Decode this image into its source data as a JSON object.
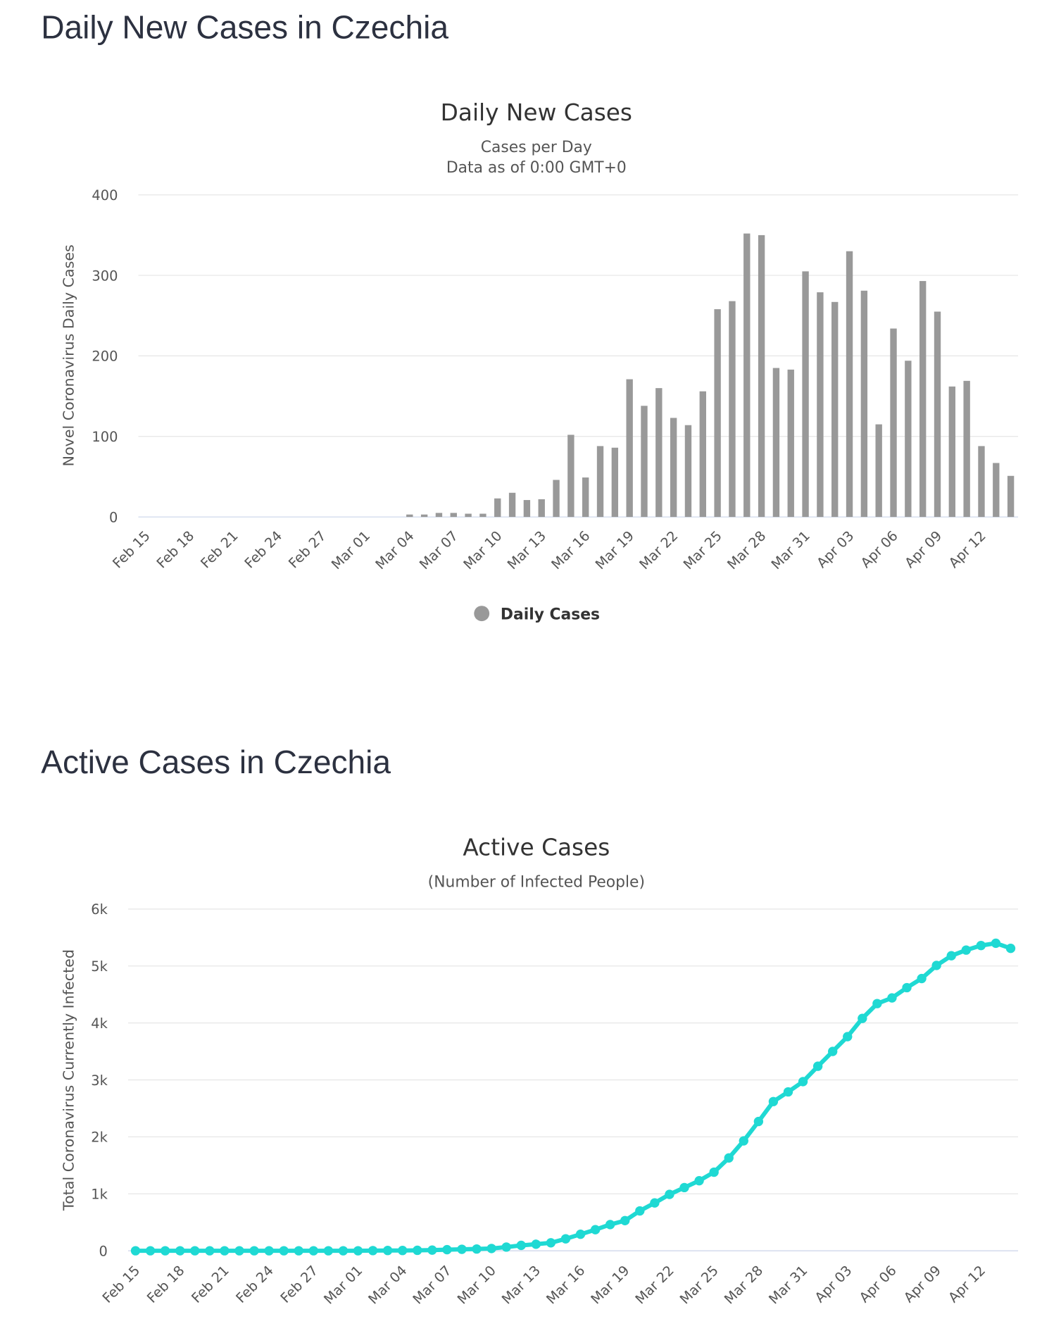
{
  "chart_data": [
    {
      "type": "bar",
      "heading": "Daily New Cases in Czechia",
      "title": "Daily New Cases",
      "subtitle": [
        "Cases per Day",
        "Data as of 0:00 GMT+0"
      ],
      "ylabel": "Novel Coronavirus Daily Cases",
      "xlabel": "",
      "ylim": [
        0,
        400
      ],
      "yticks": [
        "0",
        "100",
        "200",
        "300",
        "400"
      ],
      "ytick_values": [
        0,
        100,
        200,
        300,
        400
      ],
      "xtick_labels": [
        "Feb 15",
        "Feb 18",
        "Feb 21",
        "Feb 24",
        "Feb 27",
        "Mar 01",
        "Mar 04",
        "Mar 07",
        "Mar 10",
        "Mar 13",
        "Mar 16",
        "Mar 19",
        "Mar 22",
        "Mar 25",
        "Mar 28",
        "Mar 31",
        "Apr 03",
        "Apr 06",
        "Apr 09",
        "Apr 12"
      ],
      "grid": true,
      "legend": {
        "position": "bottom-center",
        "label": "Daily Cases"
      },
      "color": "#999999",
      "series": [
        {
          "name": "Daily Cases",
          "values": [
            0,
            0,
            0,
            0,
            0,
            0,
            0,
            0,
            0,
            0,
            0,
            0,
            0,
            0,
            0,
            0,
            0,
            0,
            3,
            3,
            5,
            5,
            4,
            4,
            23,
            30,
            21,
            22,
            46,
            102,
            49,
            88,
            86,
            171,
            138,
            160,
            123,
            114,
            156,
            258,
            268,
            352,
            350,
            185,
            183,
            305,
            279,
            267,
            330,
            281,
            115,
            234,
            194,
            293,
            255,
            162,
            169,
            88,
            67,
            51
          ]
        }
      ]
    },
    {
      "type": "line",
      "heading": "Active Cases in Czechia",
      "title": "Active Cases",
      "subtitle": [
        "(Number of Infected People)"
      ],
      "ylabel": "Total Coronavirus Currently Infected",
      "xlabel": "",
      "ylim": [
        0,
        6000
      ],
      "yticks": [
        "0",
        "1k",
        "2k",
        "3k",
        "4k",
        "5k",
        "6k"
      ],
      "ytick_values": [
        0,
        1000,
        2000,
        3000,
        4000,
        5000,
        6000
      ],
      "xtick_labels": [
        "Feb 15",
        "Feb 18",
        "Feb 21",
        "Feb 24",
        "Feb 27",
        "Mar 01",
        "Mar 04",
        "Mar 07",
        "Mar 10",
        "Mar 13",
        "Mar 16",
        "Mar 19",
        "Mar 22",
        "Mar 25",
        "Mar 28",
        "Mar 31",
        "Apr 03",
        "Apr 06",
        "Apr 09",
        "Apr 12"
      ],
      "grid": true,
      "color": "#1fd9d3",
      "series": [
        {
          "name": "Currently Infected",
          "values": [
            0,
            0,
            0,
            0,
            0,
            0,
            0,
            0,
            0,
            0,
            0,
            0,
            0,
            0,
            0,
            0,
            3,
            5,
            5,
            8,
            12,
            19,
            26,
            31,
            40,
            65,
            95,
            115,
            140,
            210,
            290,
            370,
            460,
            530,
            700,
            840,
            990,
            1110,
            1230,
            1380,
            1630,
            1930,
            2270,
            2620,
            2790,
            2970,
            3240,
            3500,
            3760,
            4080,
            4340,
            4440,
            4620,
            4780,
            5010,
            5180,
            5280,
            5360,
            5400,
            5310
          ]
        }
      ]
    }
  ]
}
